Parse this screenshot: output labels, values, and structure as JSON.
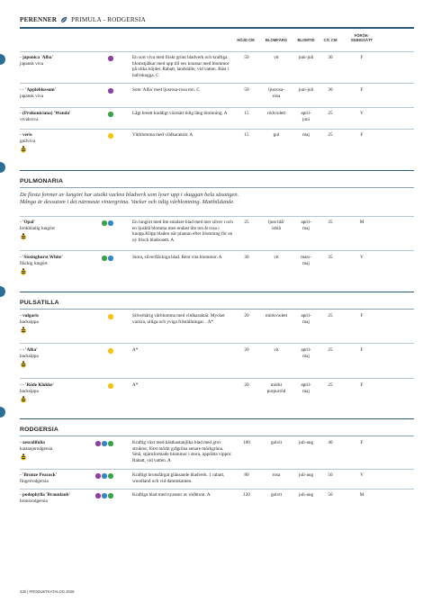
{
  "header": {
    "category": "PERENNER",
    "subcategory": "PRIMULA - RODGERSIA"
  },
  "columns": {
    "height": "HÖJD CM",
    "flower_color": "BLOMFÄRG",
    "bloom_time": "BLOMTID",
    "spacing": "C/C CM",
    "pot_size_l1": "FÖRÖK-",
    "pot_size_l2": "SNINGSÄTT"
  },
  "colors": {
    "accent": "#2a5b78",
    "dot_purple": "#8e3fa4",
    "dot_yellow": "#f1c40f",
    "dot_green": "#3aa24a",
    "dot_blue": "#3b82c4"
  },
  "rows_primula": [
    {
      "name": "- japonica 'Alba'",
      "sub": "japansk viva",
      "desc": "En sort viva med friskt grönt bladverk och kraftiga blomstjälkar med upp till sex kransar med blommor på olika höjder. Rabatt, landställe, vid vatten. Bäst i halvskugga. C",
      "height": "50",
      "color": "vit",
      "time": "juni-juli",
      "cc": "30",
      "type": "F",
      "dots": [
        "purple"
      ],
      "bee": false
    },
    {
      "name": "- - 'Appleblossom'",
      "sub": "japansk viva",
      "desc": "Som 'Alba' med ljusrosa-rosa ton. C",
      "height": "50",
      "color": "ljusrosa-\nrosa",
      "time": "juni-juli",
      "cc": "30",
      "type": "F",
      "dots": [
        "purple"
      ],
      "bee": false
    },
    {
      "name": "- (Prukoniciana) 'Wanda'",
      "sub": "vivahviva",
      "desc": "Lågt breett kuddigt växtsätt tidig lång blomning. A",
      "height": "15",
      "color": "rödviolett",
      "time": "april-\njuni",
      "cc": "25",
      "type": "V",
      "dots": [
        "green"
      ],
      "bee": false
    },
    {
      "name": "- veris",
      "sub": "gullviva",
      "desc": "Vårblomma med vildkaraktär. A",
      "height": "15",
      "color": "gul",
      "time": "maj",
      "cc": "25",
      "type": "F",
      "dots": [
        "yellow"
      ],
      "bee": true
    }
  ],
  "pulmonaria": {
    "title": "PULMONARIA",
    "intro": "De flesta former av lungört har utsökt vackra bladverk som lyser upp i skuggan hela säsongen. Många är dessutom i det närmaste vintergröna. Vacker och tidig vårblomning. Mattbildande.",
    "rows": [
      {
        "name": "- 'Opal'",
        "sub": "brokbladig lungört",
        "desc": "En lungört med lite smalare blad med mer silver i och en ljusblå blomma men endast lite ton åt rosa i knopp.Klipp bladen när plantan efter blomning för en ny frisch bladrosett. A",
        "height": "25",
        "color": "ljust blå/\nisblå",
        "time": "april-\nmaj",
        "cc": "35",
        "type": "M",
        "dots": [
          "green",
          "blue"
        ],
        "bee": true
      },
      {
        "name": "- 'Sissinghurst White'",
        "sub": "fläckig lungört",
        "desc": "Stora, silverfläckiga blad. Rent vita blommor. A",
        "height": "30",
        "color": "vit",
        "time": "mars-\nmaj",
        "cc": "35",
        "type": "V",
        "dots": [
          "green",
          "blue"
        ],
        "bee": true
      }
    ]
  },
  "pulsatilla": {
    "title": "PULSATILLA",
    "rows": [
      {
        "name": "- vulgaris",
        "sub": "backsippa",
        "desc": "Silverhårig vårblomma med vildkaraktär. Mycket vackra, ulliga och yviga fröställningar. . A*",
        "height": "20",
        "color": "mörkviolett",
        "time": "april-\nmaj",
        "cc": "25",
        "type": "F",
        "dots": [
          "yellow"
        ],
        "bee": true
      },
      {
        "name": "- - 'Alba'",
        "sub": "backsippa",
        "desc": "A*",
        "height": "20",
        "color": "vit",
        "time": "april-\nmaj",
        "cc": "25",
        "type": "F",
        "dots": [
          "yellow"
        ],
        "bee": true
      },
      {
        "name": "- - 'Röde Klokke'",
        "sub": "backsippa",
        "desc": "A*",
        "height": "20",
        "color": "mörkt\npurpurröd",
        "time": "april-\nmaj",
        "cc": "25",
        "type": "F",
        "dots": [
          "yellow"
        ],
        "bee": true
      }
    ]
  },
  "rodgersia": {
    "title": "RODGERSIA",
    "rows": [
      {
        "name": "- aesculifolia",
        "sub": "kastanjerodgersia",
        "desc": "Kraftig växt med hästkastanjlika blad med grov struktur, först mörkt grågröna senare mörkgröna. Små, stjärnformade blommor i stora, upprätta vippor. Rabatt, vid vatten. A",
        "height": "100",
        "color": "gulvit",
        "time": "juli-aug",
        "cc": "40",
        "type": "F",
        "dots": [
          "purple",
          "blue",
          "green"
        ],
        "bee": true
      },
      {
        "name": "- 'Bronze Peacock'",
        "sub": "fingerrodgersia",
        "desc": "Kraftigt bronsfärgat glänsande bladverk. 1 rabatt, woodland och vid dammkanten.",
        "height": "80",
        "color": "rosa",
        "time": "juli-aug",
        "cc": "50",
        "type": "V",
        "dots": [
          "purple",
          "blue",
          "green"
        ],
        "bee": false
      },
      {
        "name": "- podophylla 'Braunlaub'",
        "sub": "bronsrodgersia",
        "desc": "Kraftiga blad med nyanser av rödbrunt. A",
        "height": "120",
        "color": "gulvit",
        "time": "juli-aug",
        "cc": "50",
        "type": "M",
        "dots": [
          "purple",
          "blue",
          "green"
        ],
        "bee": false
      }
    ]
  },
  "footer": "230 | PRODUKTKATALOG 2026"
}
